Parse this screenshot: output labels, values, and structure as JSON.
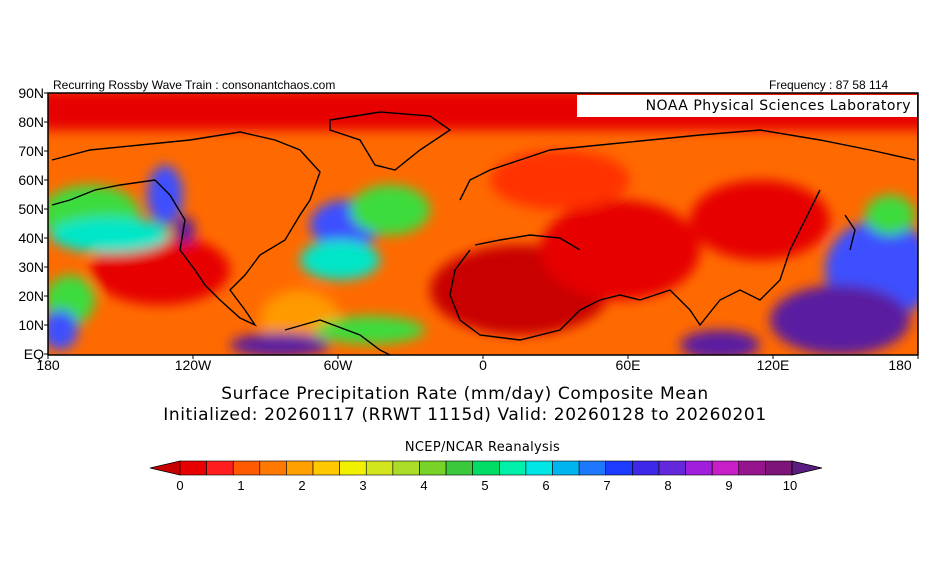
{
  "header": {
    "left_text": "Recurring Rossby Wave Train : consonantchaos.com",
    "right_text": "Frequency : 87 58 114",
    "lab_label": "NOAA Physical Sciences Laboratory"
  },
  "map": {
    "lat_labels": [
      "90N",
      "80N",
      "70N",
      "60N",
      "50N",
      "40N",
      "30N",
      "20N",
      "10N",
      "EQ"
    ],
    "lon_labels": [
      "180",
      "120W",
      "60W",
      "0",
      "60E",
      "120E",
      "180"
    ],
    "region": "Northern Hemisphere, 0-90N, 180W-180E",
    "field_colors": {
      "dry": "#e60000",
      "very_dry": "#c80000",
      "mid": "#ff8c00",
      "moist": "#3cdc3c",
      "wet": "#3c50ff",
      "very_wet": "#5a1ea0"
    }
  },
  "titles": {
    "line1": "Surface Precipitation Rate (mm/day) Composite Mean",
    "line2": "Initialized: 20260117 (RRWT 1115d) Valid: 20260128 to 20260201",
    "dataset": "NCEP/NCAR Reanalysis"
  },
  "colorbar": {
    "labels": [
      "0",
      "1",
      "2",
      "3",
      "4",
      "5",
      "6",
      "7",
      "8",
      "9",
      "10"
    ],
    "colors": [
      "#c80000",
      "#e60000",
      "#ff1e1e",
      "#ff5a00",
      "#ff7800",
      "#ffa000",
      "#ffc800",
      "#f0f000",
      "#d2e61e",
      "#aadc28",
      "#78d228",
      "#3cc83c",
      "#00dc64",
      "#00f0aa",
      "#00e6e6",
      "#00b4f0",
      "#1e78ff",
      "#1e3cff",
      "#3c28e6",
      "#6428dc",
      "#a01edc",
      "#c81ec8",
      "#96148c",
      "#7d1478",
      "#5a1e82"
    ],
    "min": 0,
    "max": 10,
    "units": "mm/day"
  }
}
